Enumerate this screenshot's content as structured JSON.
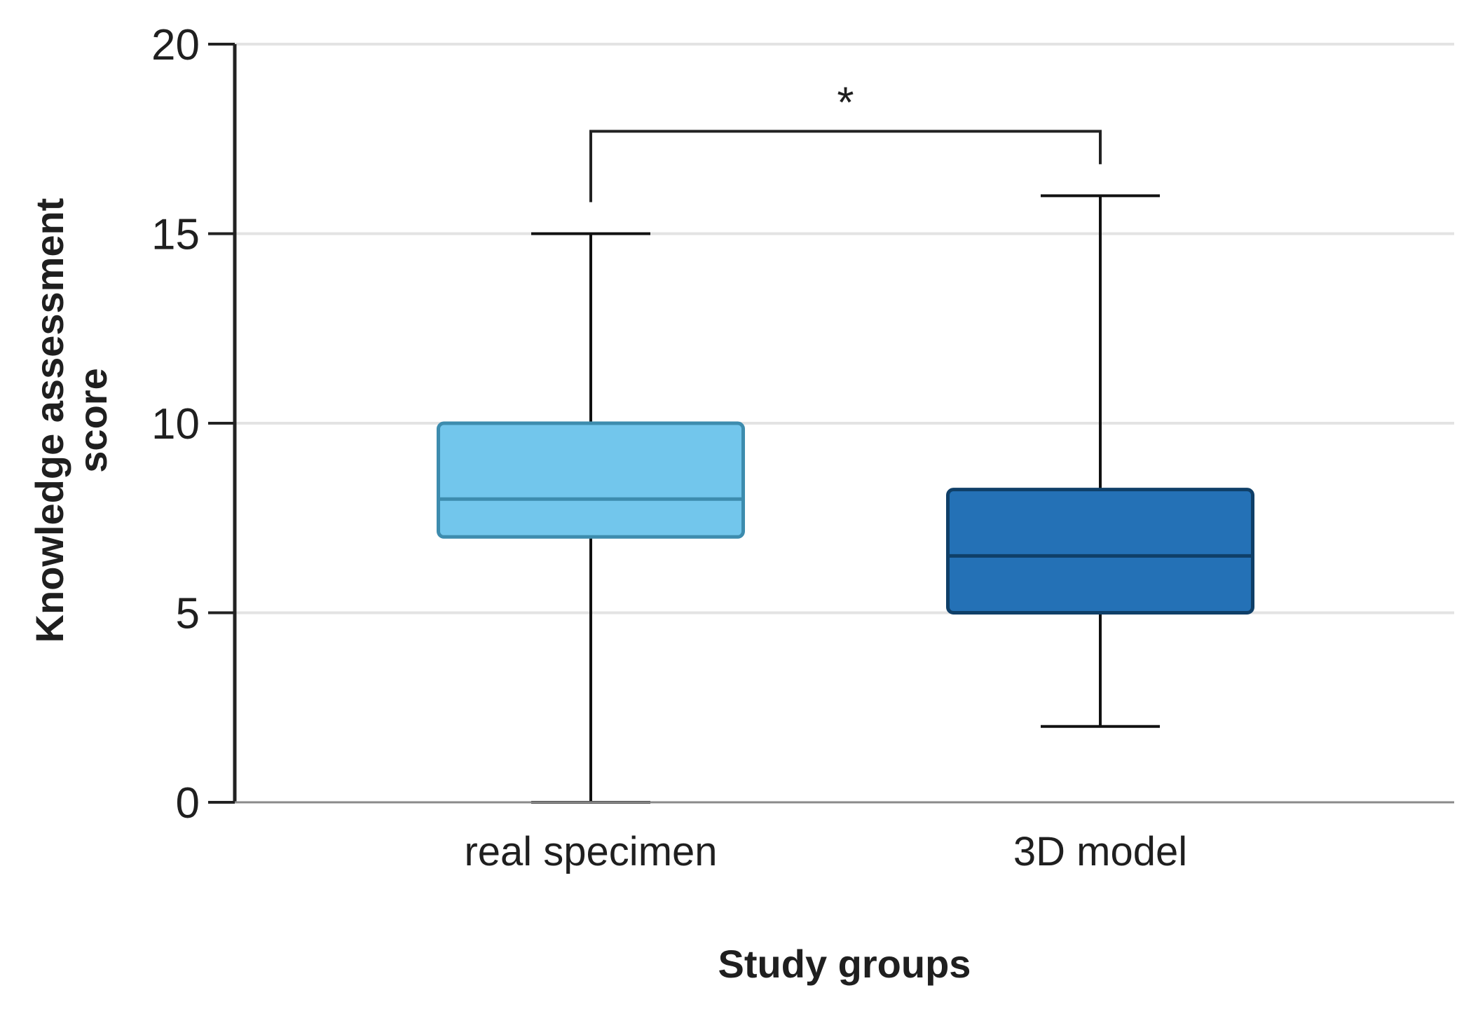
{
  "chart_data": {
    "type": "boxplot",
    "title": "",
    "xlabel": "Study groups",
    "ylabel": "Knowledge assessment score",
    "ylim": [
      0,
      20
    ],
    "yticks": [
      0,
      5,
      10,
      15,
      20
    ],
    "grid": true,
    "categories": [
      "real specimen",
      "3D model"
    ],
    "series": [
      {
        "name": "real specimen",
        "min": 0,
        "q1": 7,
        "median": 8,
        "q3": 10,
        "max": 15,
        "color": "#72C6EC",
        "stroke": "#3D8CAE"
      },
      {
        "name": "3D model",
        "min": 2,
        "q1": 5,
        "median": 6.5,
        "q3": 8.25,
        "max": 16,
        "color": "#2471B6",
        "stroke": "#0F3F68"
      }
    ],
    "annotations": [
      {
        "type": "significance",
        "from": "real specimen",
        "to": "3D model",
        "label": "*",
        "y": 17.7
      }
    ]
  }
}
